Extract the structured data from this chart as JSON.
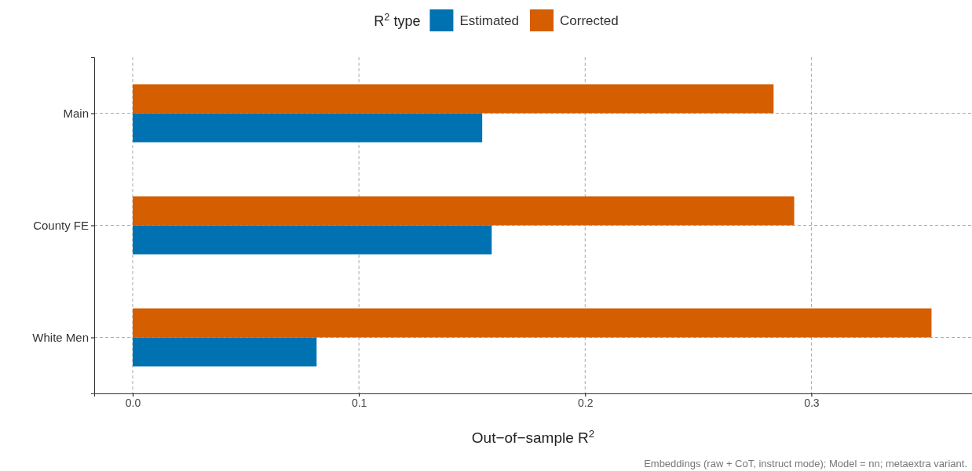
{
  "chart_data": {
    "type": "bar",
    "orientation": "horizontal",
    "categories": [
      "Main",
      "County FE",
      "White Men"
    ],
    "series": [
      {
        "name": "Estimated",
        "color": "#0072b2",
        "values": [
          0.1545,
          0.1587,
          0.0813
        ]
      },
      {
        "name": "Corrected",
        "color": "#d55e00",
        "values": [
          0.2833,
          0.2924,
          0.3531
        ]
      }
    ],
    "xlim": [
      -0.017,
      0.371
    ],
    "xticks": [
      {
        "value": 0,
        "label": "0.0"
      },
      0.1,
      0.2,
      0.3
    ],
    "xlabel": "Out−of−sample R$^{2}$",
    "legend_title": "R$^{2}$ type",
    "legend": "top",
    "grid": true,
    "annotations": [
      "Embeddings (raw + CoT, instruct mode); Model = nn; metaextra variant."
    ]
  }
}
